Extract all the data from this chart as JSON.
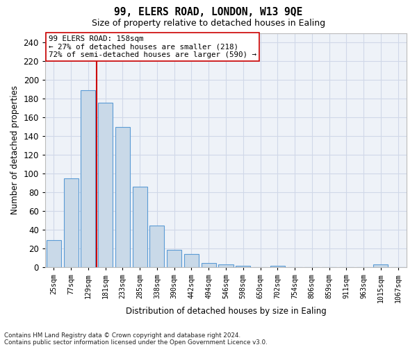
{
  "title": "99, ELERS ROAD, LONDON, W13 9QE",
  "subtitle": "Size of property relative to detached houses in Ealing",
  "xlabel": "Distribution of detached houses by size in Ealing",
  "ylabel": "Number of detached properties",
  "categories": [
    "25sqm",
    "77sqm",
    "129sqm",
    "181sqm",
    "233sqm",
    "285sqm",
    "338sqm",
    "390sqm",
    "442sqm",
    "494sqm",
    "546sqm",
    "598sqm",
    "650sqm",
    "702sqm",
    "754sqm",
    "806sqm",
    "859sqm",
    "911sqm",
    "963sqm",
    "1015sqm",
    "1067sqm"
  ],
  "values": [
    29,
    95,
    189,
    176,
    150,
    86,
    45,
    19,
    14,
    5,
    3,
    2,
    0,
    2,
    0,
    0,
    0,
    0,
    0,
    3,
    0
  ],
  "bar_color": "#c9d9e8",
  "bar_edge_color": "#5b9bd5",
  "grid_color": "#d0d8e8",
  "background_color": "#eef2f8",
  "vline_x_index": 2,
  "vline_color": "#cc0000",
  "annotation_text": "99 ELERS ROAD: 158sqm\n← 27% of detached houses are smaller (218)\n72% of semi-detached houses are larger (590) →",
  "annotation_box_color": "#ffffff",
  "annotation_box_edge": "#cc0000",
  "footnote1": "Contains HM Land Registry data © Crown copyright and database right 2024.",
  "footnote2": "Contains public sector information licensed under the Open Government Licence v3.0.",
  "ylim": [
    0,
    250
  ],
  "yticks": [
    0,
    20,
    40,
    60,
    80,
    100,
    120,
    140,
    160,
    180,
    200,
    220,
    240
  ]
}
